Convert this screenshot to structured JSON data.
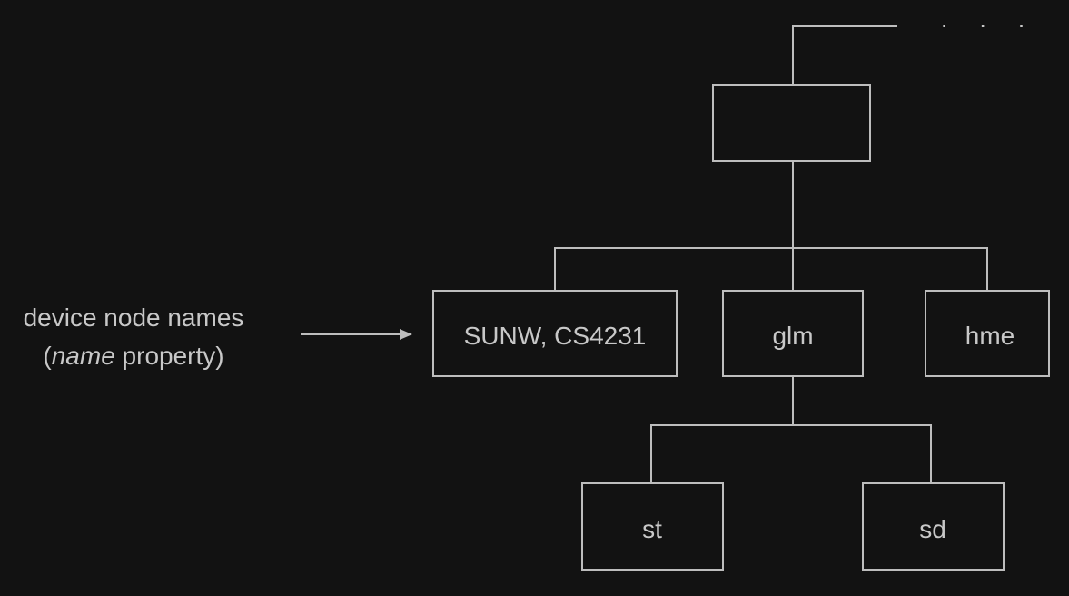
{
  "ellipsis": ". . .",
  "label": {
    "line1": "device node names",
    "open_paren": "(",
    "italic_word": "name",
    "rest": " property)"
  },
  "nodes": {
    "root": "",
    "sunw": "SUNW, CS4231",
    "glm": "glm",
    "hme": "hme",
    "st": "st",
    "sd": "sd"
  },
  "colors": {
    "background": "#121212",
    "line": "#bdbdbd",
    "text": "#c8c8c8"
  }
}
